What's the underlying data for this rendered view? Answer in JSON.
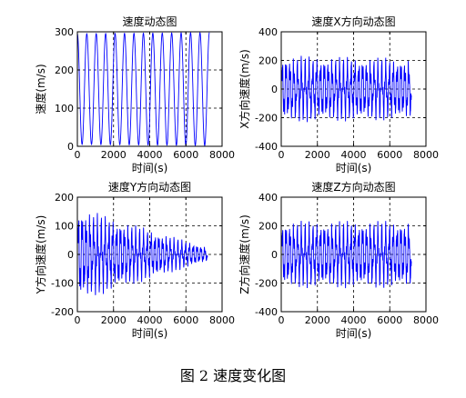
{
  "chart_data": [
    {
      "type": "line",
      "title": "速度动态图",
      "xlabel": "时间(s)",
      "ylabel": "速度(m/s)",
      "xlim": [
        0,
        8000
      ],
      "ylim": [
        0,
        300
      ],
      "xticks": [
        0,
        2000,
        4000,
        6000,
        8000
      ],
      "yticks": [
        0,
        100,
        200,
        300
      ],
      "grid": true,
      "x_end": 7300,
      "series": [
        {
          "color": "#0000ff",
          "wave": {
            "base": 150,
            "amplitude_start": 145,
            "amplitude_end": 148,
            "cycles": 14,
            "shape": "rectified-sine"
          }
        }
      ]
    },
    {
      "type": "line",
      "title": "速度X方向动态图",
      "xlabel": "时间(s)",
      "ylabel": "X方向速度(m/s)",
      "xlim": [
        0,
        8000
      ],
      "ylim": [
        -400,
        400
      ],
      "xticks": [
        0,
        2000,
        4000,
        6000,
        8000
      ],
      "yticks": [
        -400,
        -200,
        0,
        200,
        400
      ],
      "grid": true,
      "x_end": 7200,
      "series": [
        {
          "color": "#0000ff",
          "wave": {
            "base": 0,
            "amplitude_start": 240,
            "amplitude_end": 220,
            "cycles": 34,
            "shape": "oscillation"
          }
        }
      ]
    },
    {
      "type": "line",
      "title": "速度Y方向动态图",
      "xlabel": "时间(s)",
      "ylabel": "Y方向速度(m/s)",
      "xlim": [
        0,
        8000
      ],
      "ylim": [
        -200,
        200
      ],
      "xticks": [
        0,
        2000,
        4000,
        6000,
        8000
      ],
      "yticks": [
        -200,
        -100,
        0,
        100,
        200
      ],
      "grid": true,
      "x_end": 7200,
      "series": [
        {
          "color": "#0000ff",
          "wave": {
            "base": 0,
            "amplitude_start": 170,
            "amplitude_end": 25,
            "cycles": 34,
            "shape": "oscillation"
          }
        }
      ]
    },
    {
      "type": "line",
      "title": "速度Z方向动态图",
      "xlabel": "时间(s)",
      "ylabel": "Z方向速度(m/s)",
      "xlim": [
        0,
        8000
      ],
      "ylim": [
        -400,
        400
      ],
      "xticks": [
        0,
        2000,
        4000,
        6000,
        8000
      ],
      "yticks": [
        -400,
        -200,
        0,
        200,
        400
      ],
      "grid": true,
      "x_end": 7200,
      "series": [
        {
          "color": "#0000ff",
          "wave": {
            "base": 0,
            "amplitude_start": 240,
            "amplitude_end": 240,
            "cycles": 34,
            "shape": "oscillation"
          }
        }
      ]
    }
  ],
  "caption": "图 2  速度变化图"
}
